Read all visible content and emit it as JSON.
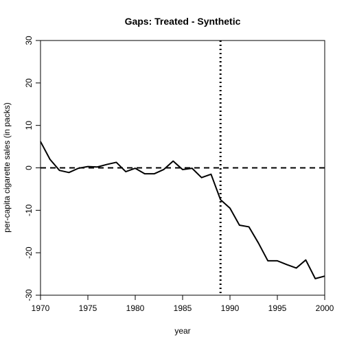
{
  "chart_data": {
    "type": "line",
    "title": "Gaps: Treated - Synthetic",
    "xlabel": "year",
    "ylabel": "per-capita cigarette sales (in packs)",
    "xlim": [
      1970,
      2000
    ],
    "ylim": [
      -30,
      30
    ],
    "xticks": [
      1970,
      1975,
      1980,
      1985,
      1990,
      1995,
      2000
    ],
    "yticks": [
      -30,
      -20,
      -10,
      0,
      10,
      20,
      30
    ],
    "grid": false,
    "reference_lines": {
      "horizontal_y": 0,
      "vertical_x": 1989
    },
    "series": [
      {
        "x": [
          1970,
          1971,
          1972,
          1973,
          1974,
          1975,
          1976,
          1977,
          1978,
          1979,
          1980,
          1981,
          1982,
          1983,
          1984,
          1985,
          1986,
          1987,
          1988,
          1989,
          1990,
          1991,
          1992,
          1993,
          1994,
          1995,
          1996,
          1997,
          1998,
          1999,
          2000
        ],
        "y": [
          6.2,
          2.0,
          -0.6,
          -1.1,
          -0.1,
          0.3,
          0.2,
          0.8,
          1.3,
          -0.9,
          -0.1,
          -1.4,
          -1.4,
          -0.4,
          1.6,
          -0.4,
          -0.1,
          -2.3,
          -1.5,
          -7.5,
          -9.5,
          -13.5,
          -13.9,
          -17.7,
          -21.9,
          -21.9,
          -22.8,
          -23.6,
          -21.7,
          -26.1,
          -25.5
        ]
      }
    ]
  }
}
